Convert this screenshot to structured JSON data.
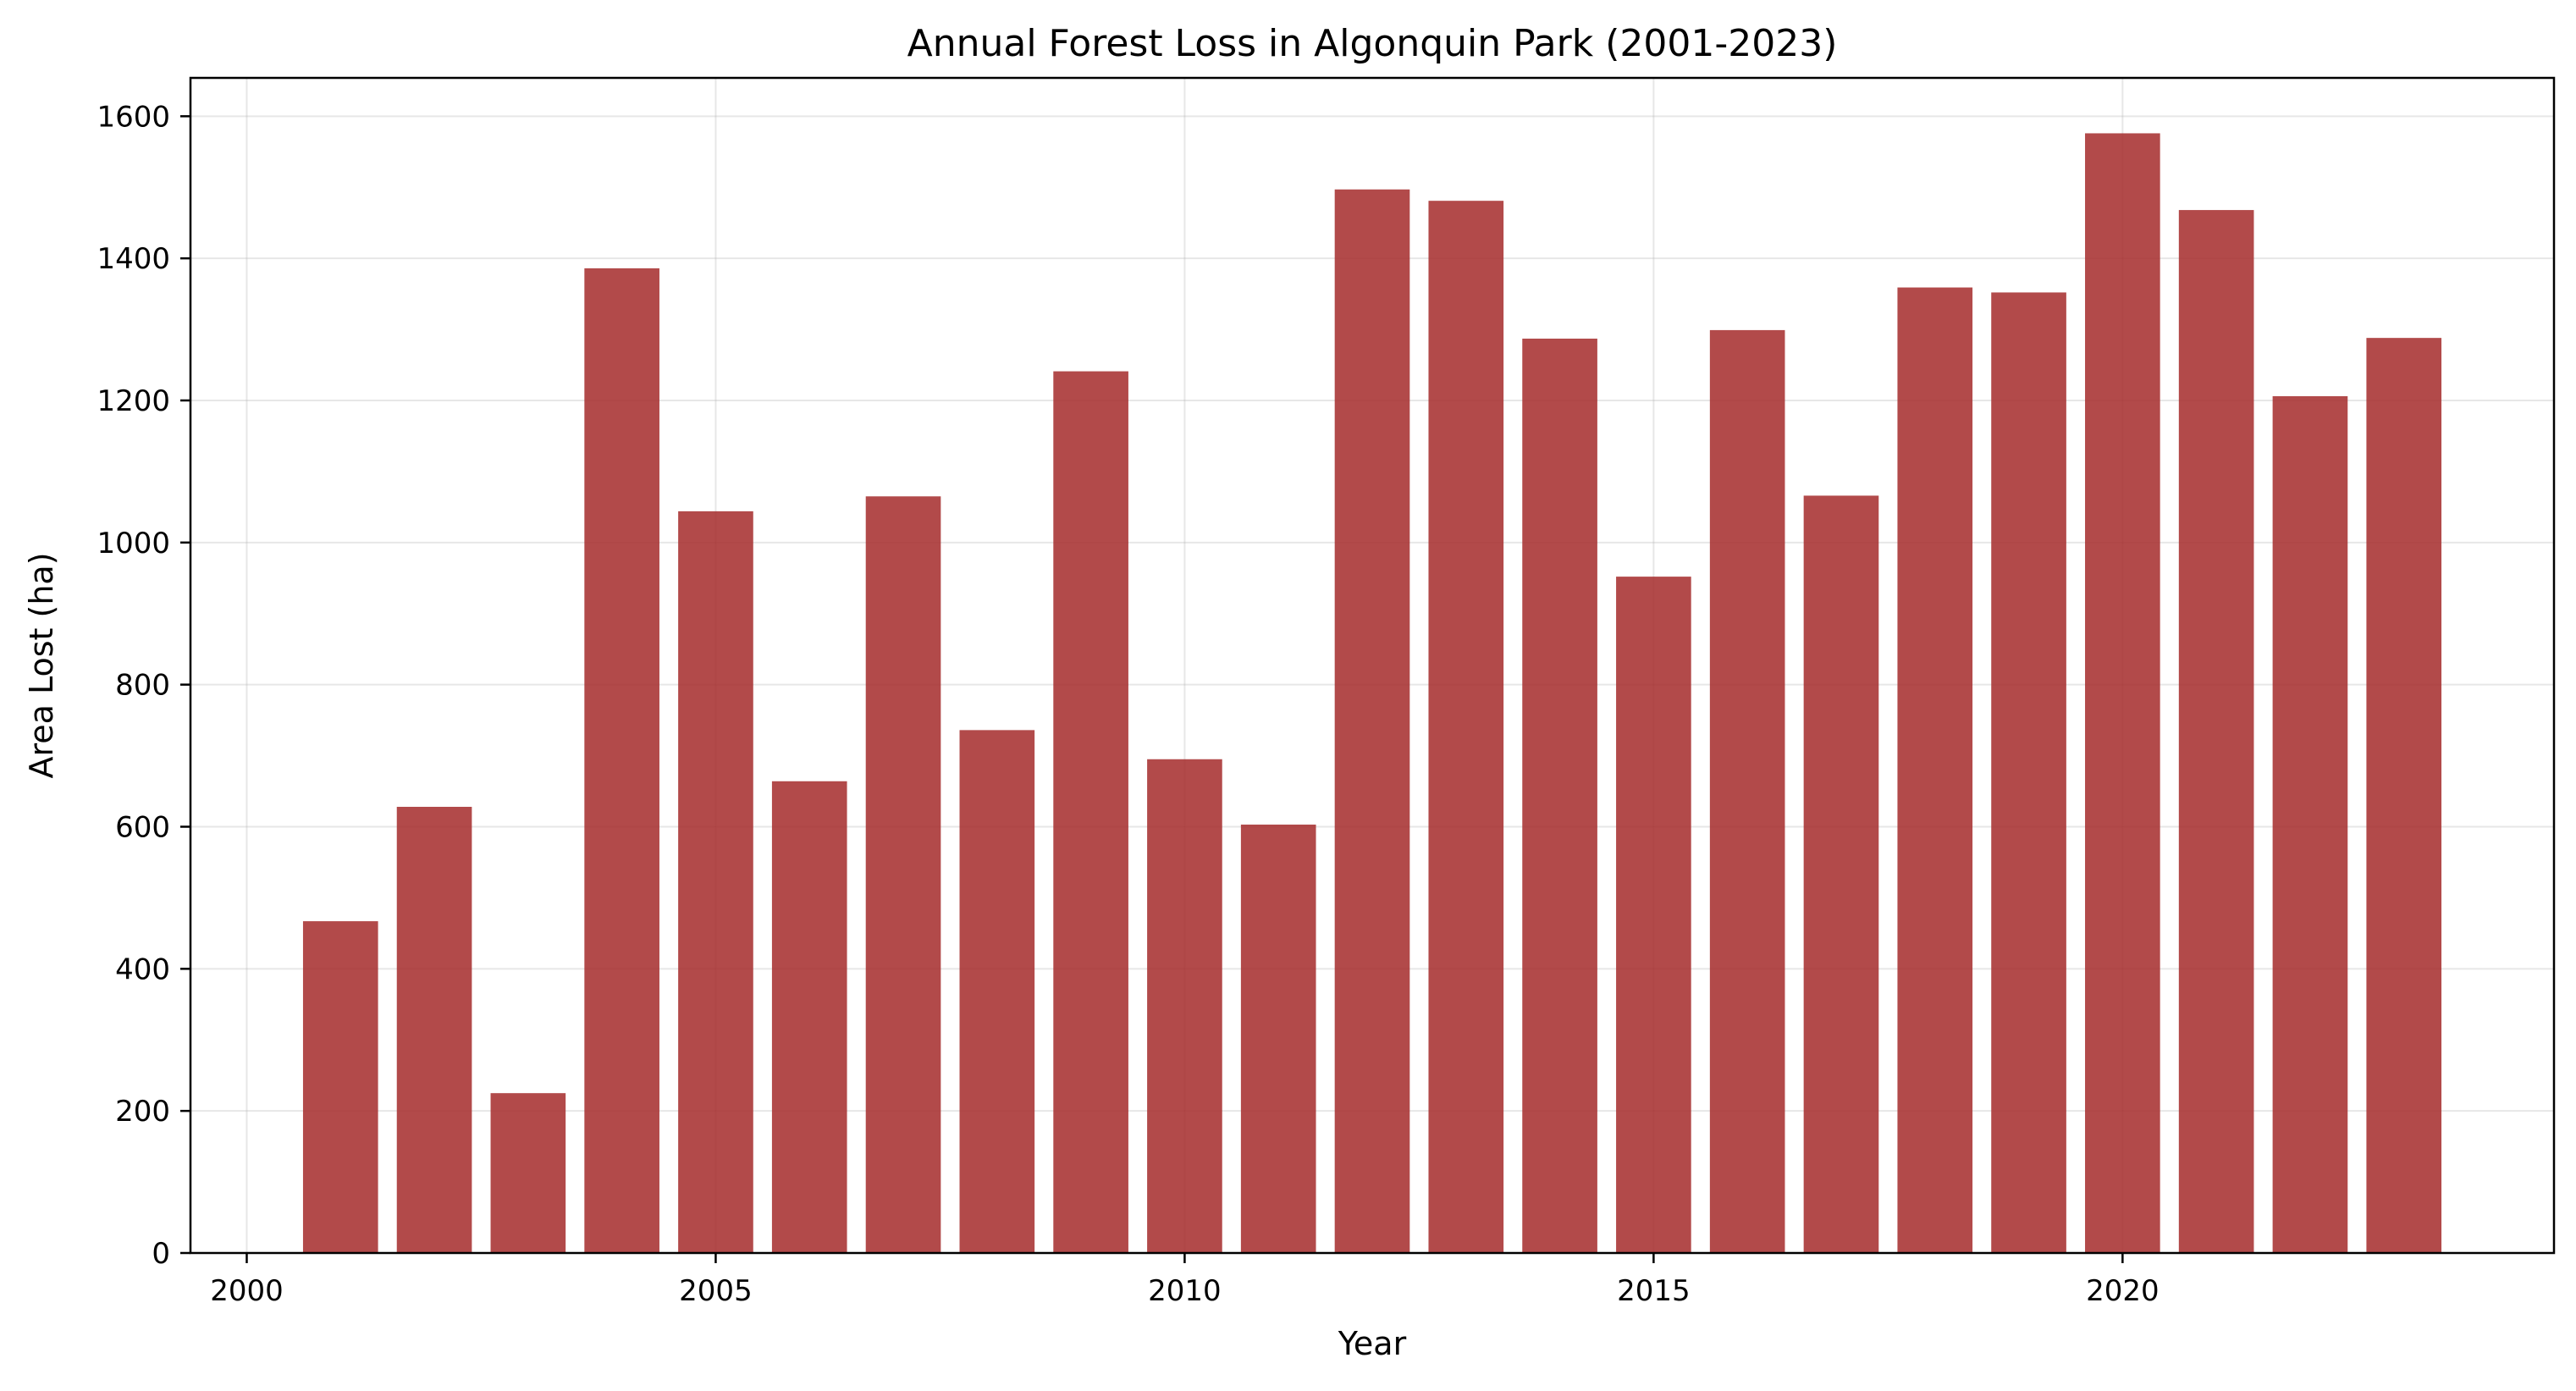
{
  "chart_data": {
    "type": "bar",
    "title": "Annual Forest Loss in Algonquin Park (2001-2023)",
    "xlabel": "Year",
    "ylabel": "Area Lost (ha)",
    "x": [
      2001,
      2002,
      2003,
      2004,
      2005,
      2006,
      2007,
      2008,
      2009,
      2010,
      2011,
      2012,
      2013,
      2014,
      2015,
      2016,
      2017,
      2018,
      2019,
      2020,
      2021,
      2022,
      2023
    ],
    "values": [
      467,
      628,
      225,
      1386,
      1044,
      664,
      1065,
      736,
      1241,
      695,
      603,
      1497,
      1481,
      1287,
      952,
      1299,
      1066,
      1359,
      1352,
      1576,
      1468,
      1206,
      1288
    ],
    "xlim": [
      1999.4,
      2024.6
    ],
    "ylim": [
      0,
      1654
    ],
    "xticks": [
      2000,
      2005,
      2010,
      2015,
      2020
    ],
    "yticks": [
      0,
      200,
      400,
      600,
      800,
      1000,
      1200,
      1400,
      1600
    ],
    "grid": true,
    "bar_color": "#a52a2a",
    "bar_opacity": 0.85
  }
}
